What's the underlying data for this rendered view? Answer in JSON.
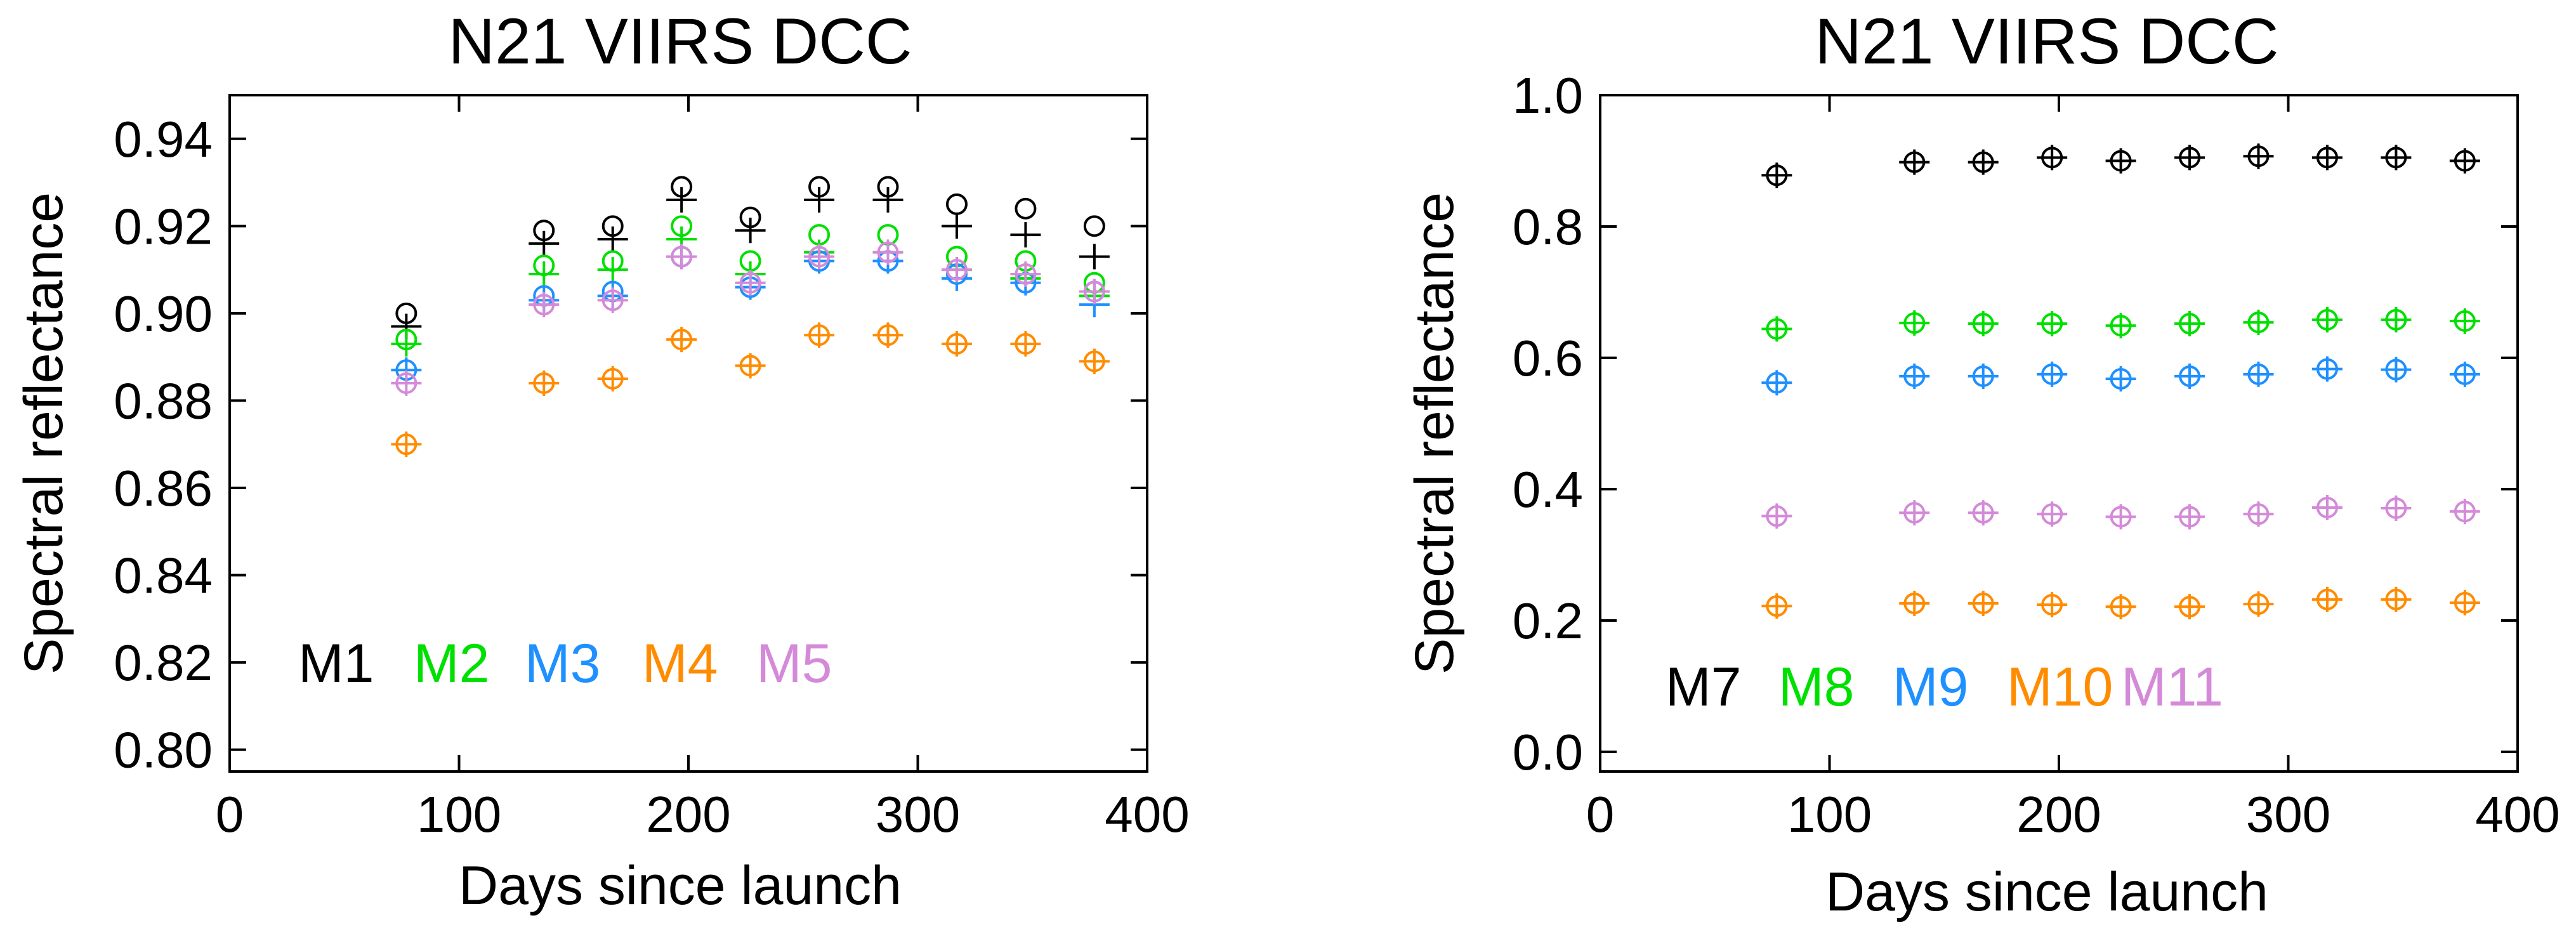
{
  "chart_data": [
    {
      "type": "scatter",
      "title": "N21 VIIRS DCC",
      "xlabel": "Days since launch",
      "ylabel": "Spectral reflectance",
      "xlim": [
        0,
        400
      ],
      "ylim": [
        0.795,
        0.95
      ],
      "xticks": [
        0,
        100,
        200,
        300,
        400
      ],
      "yticks": [
        0.8,
        0.82,
        0.84,
        0.86,
        0.88,
        0.9,
        0.92,
        0.94
      ],
      "ytick_labels": [
        "0.80",
        "0.82",
        "0.84",
        "0.86",
        "0.88",
        "0.90",
        "0.92",
        "0.94"
      ],
      "xtick_labels": [
        "0",
        "100",
        "200",
        "300",
        "400"
      ],
      "legend_position": "bottom-left",
      "series": [
        {
          "name": "M1",
          "color": "#000000",
          "x": [
            77,
            137,
            167,
            197,
            227,
            257,
            287,
            317,
            347,
            377
          ],
          "circle": [
            0.9,
            0.919,
            0.92,
            0.929,
            0.922,
            0.929,
            0.929,
            0.925,
            0.924,
            0.92
          ],
          "mean": [
            0.897,
            0.916,
            0.917,
            0.926,
            0.919,
            0.926,
            0.926,
            0.92,
            0.918,
            0.913
          ]
        },
        {
          "name": "M2",
          "color": "#00e000",
          "x": [
            77,
            137,
            167,
            197,
            227,
            257,
            287,
            317,
            347,
            377
          ],
          "circle": [
            0.894,
            0.911,
            0.912,
            0.92,
            0.912,
            0.918,
            0.918,
            0.913,
            0.912,
            0.907
          ],
          "mean": [
            0.893,
            0.909,
            0.91,
            0.917,
            0.909,
            0.914,
            0.914,
            0.91,
            0.908,
            0.904
          ]
        },
        {
          "name": "M3",
          "color": "#1e90ff",
          "x": [
            77,
            137,
            167,
            197,
            227,
            257,
            287,
            317,
            347,
            377
          ],
          "circle": [
            0.887,
            0.904,
            0.905,
            0.913,
            0.906,
            0.912,
            0.912,
            0.909,
            0.907,
            0.905
          ],
          "mean": [
            0.887,
            0.903,
            0.904,
            0.913,
            0.906,
            0.912,
            0.912,
            0.908,
            0.907,
            0.902
          ]
        },
        {
          "name": "M4",
          "color": "#ff8c00",
          "x": [
            77,
            137,
            167,
            197,
            227,
            257,
            287,
            317,
            347,
            377
          ],
          "circle": [
            0.87,
            0.884,
            0.885,
            0.894,
            0.888,
            0.895,
            0.895,
            0.893,
            0.893,
            0.889
          ],
          "mean": [
            0.87,
            0.884,
            0.885,
            0.894,
            0.888,
            0.895,
            0.895,
            0.893,
            0.893,
            0.889
          ]
        },
        {
          "name": "M5",
          "color": "#d48ad8",
          "x": [
            77,
            137,
            167,
            197,
            227,
            257,
            287,
            317,
            347,
            377
          ],
          "circle": [
            0.884,
            0.902,
            0.903,
            0.913,
            0.907,
            0.913,
            0.914,
            0.91,
            0.909,
            0.905
          ],
          "mean": [
            0.884,
            0.902,
            0.903,
            0.913,
            0.907,
            0.913,
            0.914,
            0.91,
            0.909,
            0.905
          ]
        }
      ]
    },
    {
      "type": "scatter",
      "title": "N21 VIIRS DCC",
      "xlabel": "Days since launch",
      "ylabel": "Spectral reflectance",
      "xlim": [
        0,
        400
      ],
      "ylim": [
        -0.03,
        1.0
      ],
      "xticks": [
        0,
        100,
        200,
        300,
        400
      ],
      "yticks": [
        0.0,
        0.2,
        0.4,
        0.6,
        0.8,
        1.0
      ],
      "ytick_labels": [
        "0.0",
        "0.2",
        "0.4",
        "0.6",
        "0.8",
        "1.0"
      ],
      "xtick_labels": [
        "0",
        "100",
        "200",
        "300",
        "400"
      ],
      "legend_position": "bottom-left",
      "series": [
        {
          "name": "M7",
          "color": "#000000",
          "x": [
            77,
            137,
            167,
            197,
            227,
            257,
            287,
            317,
            347,
            377
          ],
          "circle": [
            0.878,
            0.898,
            0.898,
            0.905,
            0.9,
            0.905,
            0.907,
            0.905,
            0.905,
            0.9
          ],
          "mean": [
            0.878,
            0.898,
            0.898,
            0.905,
            0.9,
            0.905,
            0.907,
            0.905,
            0.905,
            0.9
          ]
        },
        {
          "name": "M8",
          "color": "#00e000",
          "x": [
            77,
            137,
            167,
            197,
            227,
            257,
            287,
            317,
            347,
            377
          ],
          "circle": [
            0.644,
            0.653,
            0.652,
            0.652,
            0.649,
            0.652,
            0.654,
            0.658,
            0.658,
            0.656
          ],
          "mean": [
            0.644,
            0.653,
            0.652,
            0.652,
            0.649,
            0.652,
            0.654,
            0.658,
            0.658,
            0.656
          ]
        },
        {
          "name": "M9",
          "color": "#1e90ff",
          "x": [
            77,
            137,
            167,
            197,
            227,
            257,
            287,
            317,
            347,
            377
          ],
          "circle": [
            0.562,
            0.572,
            0.572,
            0.575,
            0.568,
            0.572,
            0.575,
            0.583,
            0.582,
            0.575
          ],
          "mean": [
            0.562,
            0.572,
            0.572,
            0.575,
            0.568,
            0.572,
            0.575,
            0.583,
            0.582,
            0.575
          ]
        },
        {
          "name": "M10",
          "color": "#ff8c00",
          "x": [
            77,
            137,
            167,
            197,
            227,
            257,
            287,
            317,
            347,
            377
          ],
          "circle": [
            0.222,
            0.226,
            0.226,
            0.224,
            0.221,
            0.221,
            0.225,
            0.232,
            0.232,
            0.227
          ],
          "mean": [
            0.222,
            0.226,
            0.226,
            0.224,
            0.221,
            0.221,
            0.225,
            0.232,
            0.232,
            0.227
          ]
        },
        {
          "name": "M11",
          "color": "#d48ad8",
          "x": [
            77,
            137,
            167,
            197,
            227,
            257,
            287,
            317,
            347,
            377
          ],
          "circle": [
            0.359,
            0.364,
            0.364,
            0.362,
            0.358,
            0.358,
            0.362,
            0.372,
            0.371,
            0.366
          ],
          "mean": [
            0.359,
            0.364,
            0.364,
            0.362,
            0.358,
            0.358,
            0.362,
            0.372,
            0.371,
            0.366
          ]
        }
      ]
    }
  ]
}
